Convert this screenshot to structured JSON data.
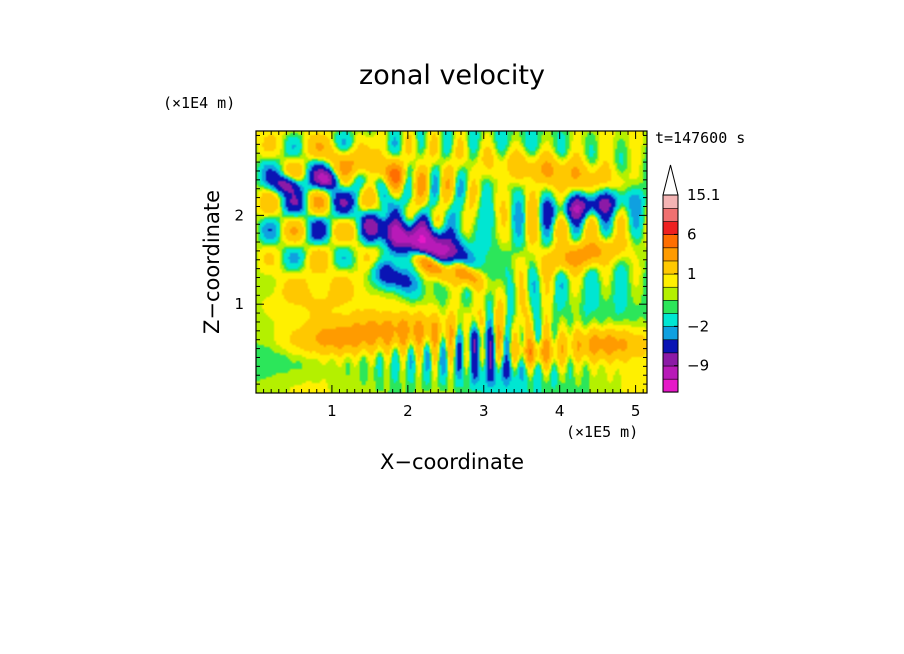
{
  "chart_data": {
    "type": "heatmap",
    "title": "zonal velocity",
    "xlabel": "X−coordinate",
    "ylabel": "Z−coordinate",
    "x_scale_label": "(×1E5 m)",
    "y_scale_label": "(×1E4 m)",
    "time_label": "t=147600 s",
    "xlim": [
      0,
      5.15
    ],
    "ylim": [
      0,
      2.95
    ],
    "xticks": [
      1,
      2,
      3,
      4,
      5
    ],
    "yticks": [
      1,
      2
    ],
    "colorbar": {
      "labeled_ticks": [
        {
          "label": "15.1",
          "value": 15.1
        },
        {
          "label": "6",
          "value": 6
        },
        {
          "label": "1",
          "value": 1
        },
        {
          "label": "−2",
          "value": -2
        },
        {
          "label": "−9",
          "value": -9
        }
      ],
      "levels": [
        {
          "color": "#e619c8"
        },
        {
          "color": "#b81ab8"
        },
        {
          "color": "#8c1aa6"
        },
        {
          "color": "#0a14b4"
        },
        {
          "color": "#0fa0e0"
        },
        {
          "color": "#00e6d2"
        },
        {
          "color": "#2ce65a"
        },
        {
          "color": "#b4f000"
        },
        {
          "color": "#fff000"
        },
        {
          "color": "#ffc800"
        },
        {
          "color": "#ff9b00"
        },
        {
          "color": "#ff6e00"
        },
        {
          "color": "#ee2020"
        },
        {
          "color": "#f07070"
        },
        {
          "color": "#f4b4b4"
        }
      ],
      "extend_max": true
    },
    "features": [
      {
        "type": "blob",
        "x": 1.9,
        "y": 1.75,
        "sx": 0.33,
        "sy": 0.11,
        "angle": -25,
        "value": -7.5
      },
      {
        "type": "blob",
        "x": 2.4,
        "y": 1.65,
        "sx": 0.3,
        "sy": 0.12,
        "angle": -28,
        "value": -6.5
      },
      {
        "type": "blob",
        "x": 4.35,
        "y": 2.1,
        "sx": 0.35,
        "sy": 0.1,
        "angle": 8,
        "value": -5.5
      },
      {
        "type": "blob",
        "x": 1.8,
        "y": 1.3,
        "sx": 0.22,
        "sy": 0.1,
        "angle": -20,
        "value": -4.5
      },
      {
        "type": "blob",
        "x": 0.4,
        "y": 2.35,
        "sx": 0.12,
        "sy": 0.07,
        "angle": 0,
        "value": -6
      },
      {
        "type": "blob",
        "x": 0.95,
        "y": 2.4,
        "sx": 0.12,
        "sy": 0.07,
        "angle": 0,
        "value": -5
      },
      {
        "type": "blob",
        "x": 2.3,
        "y": 1.45,
        "sx": 0.2,
        "sy": 0.07,
        "angle": -30,
        "value": 8
      },
      {
        "type": "blob",
        "x": 2.75,
        "y": 1.35,
        "sx": 0.16,
        "sy": 0.07,
        "angle": -30,
        "value": 7
      },
      {
        "type": "blob",
        "x": 1.9,
        "y": 0.7,
        "sx": 0.55,
        "sy": 0.14,
        "angle": 0,
        "value": 4.5
      },
      {
        "type": "blob",
        "x": 1.0,
        "y": 0.6,
        "sx": 0.4,
        "sy": 0.12,
        "angle": 0,
        "value": 3.5
      },
      {
        "type": "blob",
        "x": 4.6,
        "y": 0.55,
        "sx": 0.35,
        "sy": 0.12,
        "angle": 0,
        "value": 4.5
      },
      {
        "type": "blob",
        "x": 3.7,
        "y": 0.45,
        "sx": 0.22,
        "sy": 0.1,
        "angle": 0,
        "value": 3.5
      },
      {
        "type": "blob",
        "x": 1.5,
        "y": 2.55,
        "sx": 0.5,
        "sy": 0.1,
        "angle": -15,
        "value": 3.5
      },
      {
        "type": "blob",
        "x": 4.3,
        "y": 1.55,
        "sx": 0.35,
        "sy": 0.1,
        "angle": 10,
        "value": 4.5
      },
      {
        "type": "blob",
        "x": 3.9,
        "y": 2.5,
        "sx": 0.6,
        "sy": 0.12,
        "angle": -8,
        "value": 3.5
      },
      {
        "type": "blob",
        "x": 0.6,
        "y": 1.1,
        "sx": 0.5,
        "sy": 0.2,
        "angle": 0,
        "value": 2
      },
      {
        "type": "blob",
        "x": 3.1,
        "y": 0.25,
        "sx": 0.3,
        "sy": 0.15,
        "angle": 0,
        "value": -2.5
      },
      {
        "type": "blob",
        "x": 2.9,
        "y": 0.6,
        "sx": 0.15,
        "sy": 0.12,
        "angle": 0,
        "value": -3.5
      },
      {
        "type": "blob",
        "x": 0.35,
        "y": 0.35,
        "sx": 0.5,
        "sy": 0.15,
        "angle": 0,
        "value": -0.8
      },
      {
        "type": "wave",
        "x": 0.8,
        "y": 2.15,
        "sx": 0.7,
        "sy": 0.55,
        "kx": 9.5,
        "ky": 9.5,
        "amp": 5
      },
      {
        "type": "wave",
        "x": 2.2,
        "y": 2.3,
        "sx": 0.55,
        "sy": 0.45,
        "kx": 18,
        "ky": 6,
        "amp": 3.5
      },
      {
        "type": "wave",
        "x": 3.9,
        "y": 1.95,
        "sx": 1.1,
        "sy": 0.55,
        "kx": 16,
        "ky": 4,
        "amp": 3
      },
      {
        "type": "wave",
        "x": 2.95,
        "y": 0.45,
        "sx": 0.9,
        "sy": 0.35,
        "kx": 30,
        "ky": 3,
        "amp": 3
      },
      {
        "type": "wave",
        "x": 3.3,
        "y": 1.2,
        "sx": 0.4,
        "sy": 0.6,
        "kx": 20,
        "ky": 2,
        "amp": 2
      }
    ]
  }
}
